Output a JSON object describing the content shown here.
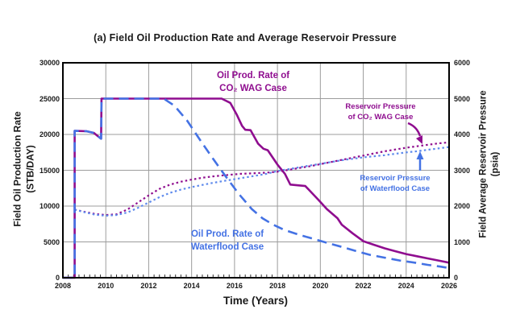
{
  "title": "(a) Field Oil Production Rate and Average Reservoir Pressure",
  "colors": {
    "wag": "#8F0D8F",
    "waterflood": "#4472E4",
    "waterflood_dotted": "#5E8AEC",
    "grid": "#9c9c9c",
    "axis": "#000000",
    "text": "#1a1a1a"
  },
  "chart_data": {
    "type": "line",
    "title": "(a) Field Oil Production Rate and Average Reservoir Pressure",
    "xlabel": "Time (Years)",
    "ylabel_left_line1": "Field Oil Production Rate",
    "ylabel_left_line2": "(STB/DAY)",
    "ylabel_right_line1": "Field Average Reservoir Pressure",
    "ylabel_right_line2": "(psia)",
    "xlim": [
      2008,
      2026
    ],
    "ylim_left": [
      0,
      30000
    ],
    "ylim_right": [
      0,
      6000
    ],
    "x_ticks": [
      2008,
      2010,
      2012,
      2014,
      2016,
      2018,
      2020,
      2022,
      2024,
      2026
    ],
    "y_ticks_left": [
      0,
      5000,
      10000,
      15000,
      20000,
      25000,
      30000
    ],
    "y_ticks_right": [
      0,
      1000,
      2000,
      3000,
      4000,
      5000,
      6000
    ],
    "grid": true,
    "legend_position": "inline-annotations",
    "series": [
      {
        "name": "Oil Prod. Rate of CO2 WAG Case",
        "axis": "left",
        "style": "solid",
        "color": "#8F0D8F",
        "width": 2.6,
        "points": [
          [
            2008.0,
            0
          ],
          [
            2008.55,
            0
          ],
          [
            2008.55,
            20500
          ],
          [
            2009.1,
            20450
          ],
          [
            2009.45,
            20200
          ],
          [
            2009.7,
            19600
          ],
          [
            2009.78,
            19400
          ],
          [
            2009.8,
            25000
          ],
          [
            2015.4,
            25000
          ],
          [
            2015.8,
            24400
          ],
          [
            2016.1,
            22800
          ],
          [
            2016.35,
            21200
          ],
          [
            2016.5,
            20650
          ],
          [
            2016.75,
            20600
          ],
          [
            2017.1,
            18700
          ],
          [
            2017.35,
            18000
          ],
          [
            2017.55,
            17800
          ],
          [
            2018.0,
            15800
          ],
          [
            2018.35,
            14500
          ],
          [
            2018.6,
            13000
          ],
          [
            2019.3,
            12800
          ],
          [
            2019.9,
            10900
          ],
          [
            2020.3,
            9600
          ],
          [
            2020.8,
            8300
          ],
          [
            2021.0,
            7400
          ],
          [
            2021.5,
            6200
          ],
          [
            2022.0,
            5100
          ],
          [
            2022.5,
            4600
          ],
          [
            2023.0,
            4100
          ],
          [
            2023.5,
            3700
          ],
          [
            2024.0,
            3300
          ],
          [
            2024.5,
            3000
          ],
          [
            2025.0,
            2700
          ],
          [
            2025.5,
            2400
          ],
          [
            2026.0,
            2100
          ]
        ]
      },
      {
        "name": "Oil Prod. Rate of Waterflood Case",
        "axis": "left",
        "style": "dashed",
        "color": "#4472E4",
        "width": 2.6,
        "points": [
          [
            2008.0,
            0
          ],
          [
            2008.55,
            0
          ],
          [
            2008.55,
            20500
          ],
          [
            2009.1,
            20450
          ],
          [
            2009.45,
            20200
          ],
          [
            2009.7,
            19600
          ],
          [
            2009.78,
            19400
          ],
          [
            2009.8,
            25000
          ],
          [
            2012.7,
            25000
          ],
          [
            2013.2,
            24000
          ],
          [
            2013.8,
            21900
          ],
          [
            2014.4,
            19200
          ],
          [
            2015.0,
            16600
          ],
          [
            2015.6,
            14100
          ],
          [
            2016.2,
            11700
          ],
          [
            2016.8,
            9600
          ],
          [
            2017.3,
            8300
          ],
          [
            2017.8,
            7400
          ],
          [
            2018.3,
            6700
          ],
          [
            2019.0,
            6000
          ],
          [
            2019.7,
            5400
          ],
          [
            2020.4,
            4800
          ],
          [
            2021.0,
            4300
          ],
          [
            2021.7,
            3700
          ],
          [
            2022.3,
            3200
          ],
          [
            2023.0,
            2800
          ],
          [
            2023.7,
            2400
          ],
          [
            2024.4,
            2100
          ],
          [
            2025.0,
            1800
          ],
          [
            2025.6,
            1550
          ],
          [
            2026.0,
            1350
          ]
        ]
      },
      {
        "name": "Reservoir Pressure of CO2 WAG Case",
        "axis": "right",
        "style": "dotted",
        "color": "#8F0D8F",
        "width": 2.2,
        "points": [
          [
            2008.55,
            1900
          ],
          [
            2009.0,
            1840
          ],
          [
            2009.5,
            1780
          ],
          [
            2010.0,
            1750
          ],
          [
            2010.5,
            1770
          ],
          [
            2011.0,
            1900
          ],
          [
            2011.5,
            2100
          ],
          [
            2012.0,
            2300
          ],
          [
            2012.5,
            2480
          ],
          [
            2013.0,
            2600
          ],
          [
            2013.5,
            2680
          ],
          [
            2014.0,
            2740
          ],
          [
            2014.5,
            2790
          ],
          [
            2015.0,
            2830
          ],
          [
            2015.7,
            2870
          ],
          [
            2016.3,
            2900
          ],
          [
            2017.0,
            2920
          ],
          [
            2017.6,
            2940
          ],
          [
            2018.0,
            2960
          ],
          [
            2018.5,
            3010
          ],
          [
            2019.0,
            3060
          ],
          [
            2019.5,
            3110
          ],
          [
            2020.0,
            3170
          ],
          [
            2020.5,
            3230
          ],
          [
            2021.0,
            3290
          ],
          [
            2021.5,
            3350
          ],
          [
            2022.0,
            3410
          ],
          [
            2022.5,
            3470
          ],
          [
            2023.0,
            3530
          ],
          [
            2023.5,
            3580
          ],
          [
            2024.0,
            3630
          ],
          [
            2024.5,
            3670
          ],
          [
            2025.0,
            3710
          ],
          [
            2025.5,
            3750
          ],
          [
            2026.0,
            3780
          ]
        ]
      },
      {
        "name": "Reservoir Pressure of Waterflood Case",
        "axis": "right",
        "style": "dotted",
        "color": "#5E8AEC",
        "width": 2.2,
        "points": [
          [
            2008.55,
            1900
          ],
          [
            2009.0,
            1830
          ],
          [
            2009.5,
            1760
          ],
          [
            2010.0,
            1730
          ],
          [
            2010.5,
            1750
          ],
          [
            2011.0,
            1820
          ],
          [
            2011.5,
            1950
          ],
          [
            2012.0,
            2100
          ],
          [
            2012.5,
            2250
          ],
          [
            2013.0,
            2370
          ],
          [
            2013.5,
            2460
          ],
          [
            2014.0,
            2530
          ],
          [
            2014.5,
            2590
          ],
          [
            2015.0,
            2650
          ],
          [
            2015.5,
            2700
          ],
          [
            2016.0,
            2750
          ],
          [
            2016.5,
            2800
          ],
          [
            2017.0,
            2850
          ],
          [
            2017.5,
            2900
          ],
          [
            2018.0,
            2980
          ],
          [
            2018.5,
            3030
          ],
          [
            2019.0,
            3080
          ],
          [
            2019.5,
            3130
          ],
          [
            2020.0,
            3180
          ],
          [
            2020.5,
            3230
          ],
          [
            2021.0,
            3280
          ],
          [
            2021.5,
            3320
          ],
          [
            2022.0,
            3360
          ],
          [
            2022.5,
            3390
          ],
          [
            2023.0,
            3420
          ],
          [
            2023.5,
            3460
          ],
          [
            2024.0,
            3500
          ],
          [
            2024.5,
            3530
          ],
          [
            2025.0,
            3570
          ],
          [
            2025.5,
            3610
          ],
          [
            2026.0,
            3650
          ]
        ]
      }
    ],
    "annotations": [
      {
        "id": "wag-rate-label",
        "lines": [
          "Oil Prod. Rate of",
          "CO₂ WAG Case"
        ],
        "color": "#8F0D8F"
      },
      {
        "id": "wag-pressure-label",
        "lines": [
          "Reservoir Pressure",
          "of CO₂ WAG Case"
        ],
        "color": "#8F0D8F"
      },
      {
        "id": "waterflood-pressure-label",
        "lines": [
          "Reservoir Pressure",
          "of Waterflood Case"
        ],
        "color": "#4472E4"
      },
      {
        "id": "waterflood-rate-label",
        "lines": [
          "Oil Prod. Rate of",
          "Waterflood Case"
        ],
        "color": "#4472E4"
      }
    ]
  }
}
